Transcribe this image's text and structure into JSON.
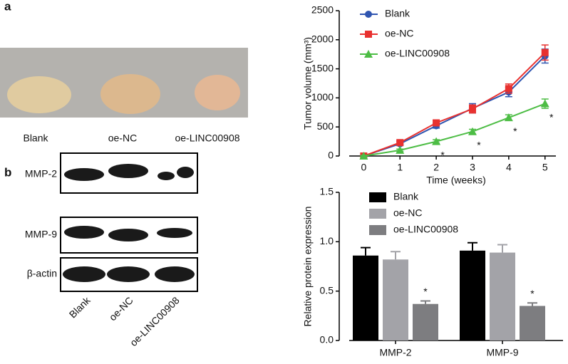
{
  "panel_labels": [
    "a",
    "b"
  ],
  "photo": {
    "labels": [
      "Blank",
      "oe-NC",
      "oe-LINC00908"
    ]
  },
  "blot": {
    "rows": [
      "MMP-2",
      "MMP-9",
      "β-actin"
    ],
    "lanes": [
      "Blank",
      "oe-NC",
      "oe-LINC00908"
    ]
  },
  "chart_data": [
    {
      "type": "line",
      "xlabel": "Time (weeks)",
      "ylabel": "Tumor volume (mm³)",
      "x": [
        0,
        1,
        2,
        3,
        4,
        5
      ],
      "xlim": [
        -0.4,
        5.3
      ],
      "xticks": [
        0,
        1,
        2,
        3,
        4,
        5
      ],
      "ylim": [
        0,
        2500
      ],
      "yticks": [
        0,
        500,
        1000,
        1500,
        2000,
        2500
      ],
      "series": [
        {
          "name": "Blank",
          "color": "#2f55b0",
          "marker": "circle",
          "values": [
            0,
            210,
            520,
            820,
            1100,
            1720
          ],
          "errors": [
            10,
            30,
            40,
            80,
            80,
            120
          ],
          "annotations": [
            null,
            null,
            null,
            null,
            null,
            null
          ]
        },
        {
          "name": "oe-NC",
          "color": "#e8312f",
          "marker": "square",
          "values": [
            0,
            230,
            570,
            810,
            1160,
            1780
          ],
          "errors": [
            10,
            30,
            40,
            70,
            80,
            130
          ],
          "annotations": [
            null,
            null,
            null,
            null,
            null,
            null
          ]
        },
        {
          "name": "oe-LINC00908",
          "color": "#4dbd45",
          "marker": "triangle",
          "values": [
            0,
            100,
            250,
            420,
            660,
            900
          ],
          "errors": [
            10,
            20,
            30,
            40,
            50,
            80
          ],
          "annotations": [
            null,
            null,
            "*",
            "*",
            "*",
            "*"
          ]
        }
      ]
    },
    {
      "type": "bar",
      "ylabel": "Relative protein expression",
      "categories": [
        "MMP-2",
        "MMP-9"
      ],
      "ylim": [
        0,
        1.5
      ],
      "yticks": [
        {
          "value": 0,
          "label": "0.0"
        },
        0.5,
        {
          "value": 1,
          "label": "1.0"
        },
        1.5
      ],
      "series": [
        {
          "name": "Blank",
          "color": "#000000",
          "values": [
            0.86,
            0.91
          ],
          "errors": [
            0.08,
            0.08
          ],
          "annotations": [
            null,
            null
          ]
        },
        {
          "name": "oe-NC",
          "color": "#a3a3a8",
          "values": [
            0.82,
            0.89
          ],
          "errors": [
            0.08,
            0.08
          ],
          "annotations": [
            null,
            null
          ]
        },
        {
          "name": "oe-LINC00908",
          "color": "#7d7d80",
          "values": [
            0.37,
            0.35
          ],
          "errors": [
            0.03,
            0.03
          ],
          "annotations": [
            "*",
            "*"
          ]
        }
      ]
    }
  ]
}
